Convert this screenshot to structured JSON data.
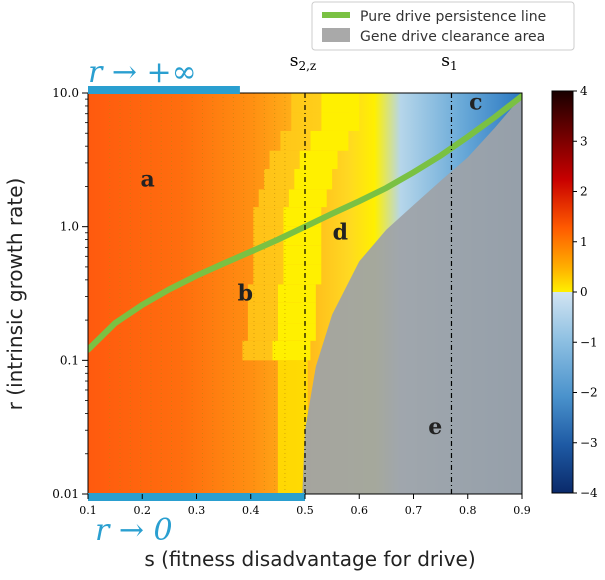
{
  "chart_data": {
    "type": "heatmap",
    "xlabel": "s (fitness disadvantage for drive)",
    "ylabel": "r (intrinsic growth rate)",
    "x_scale": "linear",
    "y_scale": "log",
    "xlim": [
      0.1,
      0.9
    ],
    "ylim": [
      0.01,
      10.0
    ],
    "x_ticks": [
      "0.1",
      "0.2",
      "0.3",
      "0.4",
      "0.5",
      "0.6",
      "0.7",
      "0.8",
      "0.9"
    ],
    "x_tick_values": [
      0.1,
      0.2,
      0.3,
      0.4,
      0.5,
      0.6,
      0.7,
      0.8,
      0.9
    ],
    "y_ticks": [
      "0.01",
      "0.1",
      "1.0",
      "10.0"
    ],
    "y_tick_values": [
      0.01,
      0.1,
      1.0,
      10.0
    ],
    "colorbar": {
      "ticks": [
        "4",
        "3",
        "2",
        "1",
        "0",
        "−1",
        "−2",
        "−3",
        "−4"
      ],
      "tick_values": [
        4,
        3,
        2,
        1,
        0,
        -1,
        -2,
        -3,
        -4
      ],
      "range": [
        -4,
        4
      ]
    },
    "vertical_lines": [
      {
        "label": "s",
        "subscript": "2,z",
        "x": 0.5
      },
      {
        "label": "s",
        "subscript": "1",
        "x": 0.77
      }
    ],
    "top_limit_label": "r → +∞",
    "bottom_limit_label": "r → 0",
    "top_bar_x": [
      0.1,
      0.38
    ],
    "bottom_bar_x": [
      0.1,
      0.5
    ],
    "region_labels": [
      {
        "text": "a",
        "x": 0.21,
        "y": 2.0
      },
      {
        "text": "b",
        "x": 0.39,
        "y": 0.28
      },
      {
        "text": "c",
        "x": 0.815,
        "y": 7.5
      },
      {
        "text": "d",
        "x": 0.565,
        "y": 0.8
      },
      {
        "text": "e",
        "x": 0.74,
        "y": 0.028
      }
    ],
    "legend": [
      {
        "label": "Pure drive persistence line",
        "color": "#7ac143",
        "marker": "line"
      },
      {
        "label": "Gene drive clearance area",
        "color": "#a9a9a9",
        "marker": "patch"
      }
    ],
    "legend_position": "top-right",
    "persistence_line": {
      "x": [
        0.1,
        0.15,
        0.2,
        0.25,
        0.3,
        0.35,
        0.4,
        0.45,
        0.5,
        0.55,
        0.6,
        0.65,
        0.7,
        0.75,
        0.8,
        0.85,
        0.9
      ],
      "y": [
        0.12,
        0.19,
        0.26,
        0.34,
        0.43,
        0.53,
        0.65,
        0.8,
        1.0,
        1.25,
        1.55,
        1.95,
        2.55,
        3.4,
        4.7,
        6.6,
        9.5
      ]
    },
    "clearance_boundary": {
      "x": [
        0.495,
        0.5,
        0.52,
        0.55,
        0.6,
        0.65,
        0.7,
        0.75,
        0.8,
        0.85,
        0.9
      ],
      "y": [
        0.01,
        0.03,
        0.09,
        0.22,
        0.55,
        0.95,
        1.45,
        2.2,
        3.3,
        5.5,
        9.5
      ]
    },
    "yellow_boundary": {
      "r": [
        10.0,
        7.2,
        5.2,
        3.7,
        2.7,
        1.9,
        1.4,
        1.0,
        0.72,
        0.52,
        0.37,
        0.27,
        0.19,
        0.14,
        0.1
      ],
      "s": [
        0.6,
        0.6,
        0.58,
        0.56,
        0.55,
        0.54,
        0.53,
        0.53,
        0.53,
        0.53,
        0.52,
        0.52,
        0.52,
        0.51,
        0.51
      ]
    }
  },
  "colors": {
    "persistence_line": "#7ac143",
    "clearance": "#9ea3a8",
    "limit_bar": "#2a9fd0",
    "limit_text": "#2a9fd0"
  }
}
